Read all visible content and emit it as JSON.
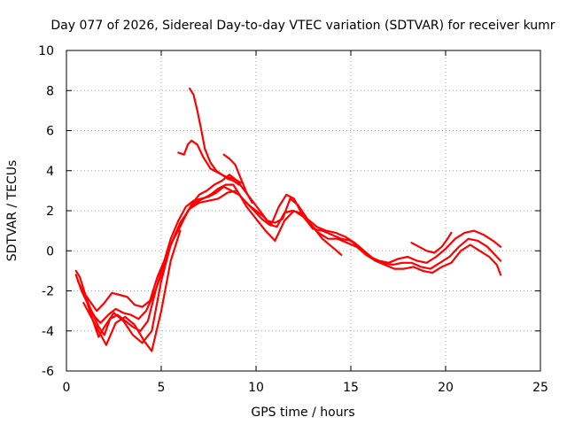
{
  "chart_data": {
    "type": "line",
    "title": "Day 077 of 2026, Sidereal Day-to-day VTEC variation (SDTVAR) for receiver kumr",
    "xlabel": "GPS time / hours",
    "ylabel": "SDTVAR / TECUs",
    "xlim": [
      0,
      25
    ],
    "ylim": [
      -6,
      10
    ],
    "xticks": [
      "0",
      "5",
      "10",
      "15",
      "20",
      "25"
    ],
    "xtick_values": [
      0,
      5,
      10,
      15,
      20,
      25
    ],
    "yticks": [
      "-6",
      "-4",
      "-2",
      "0",
      "2",
      "4",
      "6",
      "8",
      "10"
    ],
    "ytick_values": [
      -6,
      -4,
      -2,
      0,
      2,
      4,
      6,
      8,
      10
    ],
    "grid": true,
    "series_color": "#ff0000",
    "series": [
      {
        "name": "series-1",
        "x": [
          0.5,
          0.7,
          1.0,
          1.3,
          1.6,
          2.0,
          2.4,
          2.8,
          3.2,
          3.6,
          4.0,
          4.4,
          4.8,
          5.2,
          5.6,
          6.0,
          6.4,
          6.8,
          7.2,
          7.6,
          8.0,
          8.4,
          8.8,
          9.2,
          9.6,
          10.0,
          10.4,
          10.8,
          11.2,
          11.6,
          12.0,
          12.5,
          13.0,
          13.5,
          14.0,
          14.5,
          15.0,
          15.5,
          16.0,
          16.5,
          17.0,
          17.5,
          18.0,
          18.5,
          19.0,
          19.5,
          20.0,
          20.5,
          21.0,
          21.5,
          22.0,
          22.5,
          22.9
        ],
        "y": [
          -1.0,
          -1.3,
          -2.2,
          -2.6,
          -3.0,
          -2.6,
          -2.1,
          -2.2,
          -2.3,
          -2.7,
          -2.8,
          -2.5,
          -1.3,
          -0.4,
          0.5,
          1.2,
          2.0,
          2.4,
          2.6,
          2.8,
          3.1,
          3.3,
          3.3,
          2.7,
          2.3,
          2.0,
          1.7,
          1.3,
          2.2,
          2.8,
          2.6,
          1.7,
          1.1,
          1.0,
          0.8,
          0.6,
          0.5,
          0.1,
          -0.3,
          -0.5,
          -0.6,
          -0.4,
          -0.3,
          -0.5,
          -0.6,
          -0.3,
          0.1,
          0.6,
          0.9,
          1.0,
          0.8,
          0.5,
          0.2
        ]
      },
      {
        "name": "series-2",
        "x": [
          0.6,
          0.9,
          1.2,
          1.5,
          1.8,
          2.2,
          2.6,
          3.0,
          3.4,
          3.8,
          4.2,
          4.6,
          5.0,
          5.4,
          5.8,
          6.2,
          6.6,
          7.0,
          7.4,
          7.8,
          8.2,
          8.6,
          9.0,
          9.4,
          9.8,
          10.2,
          10.6,
          11.0,
          11.4,
          11.8,
          12.2,
          12.7,
          13.2,
          13.7,
          14.2,
          14.7,
          15.2,
          15.7,
          16.2,
          16.7,
          17.2,
          17.7,
          18.2,
          18.7,
          19.2,
          19.7,
          20.2,
          20.7,
          21.2,
          21.7,
          22.2,
          22.6,
          22.9
        ],
        "y": [
          -1.5,
          -2.1,
          -2.8,
          -3.3,
          -3.6,
          -3.2,
          -2.9,
          -3.1,
          -3.2,
          -3.4,
          -3.0,
          -2.2,
          -1.2,
          0.1,
          0.9,
          1.6,
          2.3,
          2.8,
          3.0,
          3.3,
          3.5,
          3.8,
          3.5,
          3.0,
          2.5,
          2.0,
          1.5,
          1.4,
          1.6,
          2.6,
          2.3,
          1.6,
          1.2,
          1.0,
          0.9,
          0.7,
          0.4,
          0.0,
          -0.4,
          -0.6,
          -0.7,
          -0.6,
          -0.6,
          -0.8,
          -0.9,
          -0.6,
          -0.3,
          0.2,
          0.6,
          0.5,
          0.2,
          -0.2,
          -0.5
        ]
      },
      {
        "name": "series-3",
        "x": [
          0.8,
          1.1,
          1.4,
          1.7,
          2.0,
          2.3,
          2.7,
          3.1,
          3.5,
          3.9,
          4.3,
          4.7,
          5.1,
          5.5,
          5.9,
          6.3,
          6.7,
          7.1,
          7.5,
          7.9,
          8.3,
          8.7,
          9.1,
          9.5,
          9.9,
          10.3,
          10.7,
          11.1,
          11.5,
          11.9,
          12.3,
          12.8,
          13.3,
          13.8,
          14.3,
          14.8,
          15.3,
          15.8,
          16.3,
          16.8,
          17.3,
          17.8,
          18.3,
          18.8,
          19.3,
          19.8,
          20.3,
          20.8,
          21.3,
          21.8,
          22.3,
          22.7,
          22.9
        ],
        "y": [
          -2.0,
          -2.5,
          -3.2,
          -3.8,
          -4.2,
          -3.4,
          -3.2,
          -3.5,
          -3.8,
          -4.0,
          -3.5,
          -2.0,
          -0.7,
          0.6,
          1.5,
          2.2,
          2.5,
          2.6,
          2.7,
          2.9,
          3.2,
          3.0,
          2.8,
          2.4,
          2.0,
          1.6,
          1.3,
          1.2,
          1.9,
          2.0,
          1.9,
          1.4,
          0.9,
          0.6,
          0.6,
          0.4,
          0.2,
          -0.2,
          -0.5,
          -0.7,
          -0.9,
          -0.9,
          -0.8,
          -1.0,
          -1.1,
          -0.8,
          -0.6,
          0.0,
          0.3,
          0.0,
          -0.3,
          -0.7,
          -1.2
        ]
      },
      {
        "name": "series-4",
        "x": [
          0.5,
          0.8,
          1.1,
          1.4,
          1.7,
          2.0,
          2.5,
          3.0,
          3.5,
          4.0,
          4.5,
          5.0,
          5.5,
          6.0,
          6.5,
          7.0,
          7.5,
          8.0,
          8.5,
          9.0,
          9.5,
          10.0,
          10.5,
          11.0,
          11.5,
          12.0,
          12.5,
          13.0,
          13.5,
          14.0,
          14.5
        ],
        "y": [
          -1.2,
          -2.0,
          -2.6,
          -3.5,
          -4.3,
          -3.8,
          -3.1,
          -3.5,
          -4.2,
          -4.6,
          -4.0,
          -1.5,
          0.3,
          1.4,
          2.1,
          2.4,
          2.5,
          2.6,
          2.9,
          3.0,
          2.2,
          1.6,
          1.0,
          0.5,
          1.5,
          2.0,
          1.7,
          1.2,
          0.6,
          0.2,
          -0.2
        ]
      },
      {
        "name": "series-5",
        "x": [
          0.9,
          1.3,
          1.7,
          2.1,
          2.6,
          3.1,
          3.6,
          4.1,
          4.5,
          5.0,
          5.5,
          6.0
        ],
        "y": [
          -2.6,
          -3.3,
          -4.0,
          -4.7,
          -3.6,
          -3.3,
          -3.7,
          -4.5,
          -5.0,
          -3.0,
          -0.5,
          1.0
        ]
      },
      {
        "name": "series-6",
        "x": [
          6.5,
          6.7,
          6.9,
          7.1,
          7.3,
          7.6,
          7.9,
          8.2,
          8.5,
          8.8,
          9.1
        ],
        "y": [
          8.1,
          7.8,
          7.0,
          6.1,
          5.1,
          4.4,
          4.0,
          3.8,
          3.6,
          3.5,
          3.3
        ]
      },
      {
        "name": "series-7",
        "x": [
          5.9,
          6.2,
          6.4,
          6.6,
          6.9,
          7.2,
          7.6,
          8.0,
          8.4,
          8.8,
          9.2
        ],
        "y": [
          4.9,
          4.8,
          5.3,
          5.5,
          5.3,
          4.7,
          4.1,
          3.9,
          3.7,
          3.6,
          3.4
        ]
      },
      {
        "name": "series-8",
        "x": [
          8.3,
          8.6,
          8.9,
          9.2,
          9.5,
          9.8
        ],
        "y": [
          4.8,
          4.6,
          4.3,
          3.6,
          2.9,
          2.4
        ]
      },
      {
        "name": "series-9",
        "x": [
          18.2,
          18.6,
          19.0,
          19.4,
          19.8,
          20.1,
          20.3
        ],
        "y": [
          0.4,
          0.2,
          0.0,
          -0.1,
          0.2,
          0.6,
          0.9
        ]
      }
    ]
  }
}
